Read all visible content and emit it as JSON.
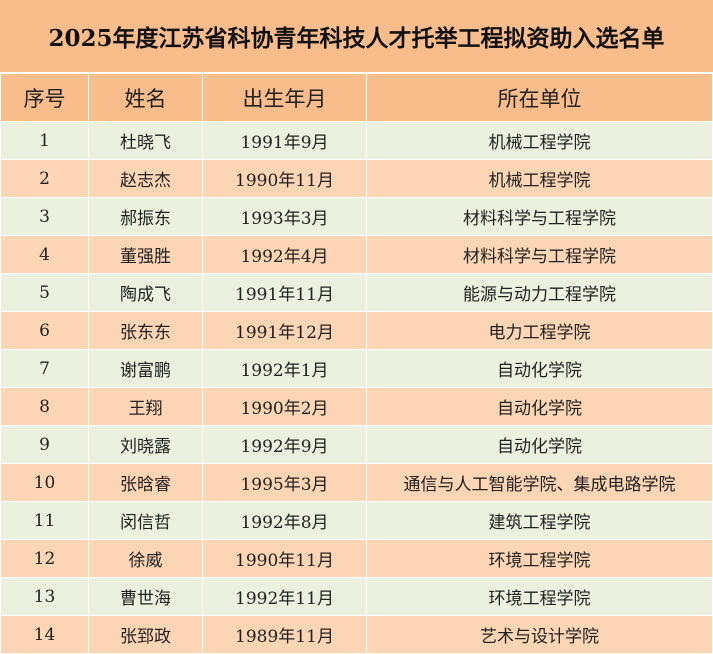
{
  "title": "2025年度江苏省科协青年科技人才托举工程拟资助入选名单",
  "colors": {
    "header": "#f9bd8c",
    "row_odd": "#ebf0df",
    "row_even": "#fcd5b4"
  },
  "columns": [
    "序号",
    "姓名",
    "出生年月",
    "所在单位"
  ],
  "rows": [
    [
      "1",
      "杜晓飞",
      "1991年9月",
      "机械工程学院"
    ],
    [
      "2",
      "赵志杰",
      "1990年11月",
      "机械工程学院"
    ],
    [
      "3",
      "郝振东",
      "1993年3月",
      "材料科学与工程学院"
    ],
    [
      "4",
      "董强胜",
      "1992年4月",
      "材料科学与工程学院"
    ],
    [
      "5",
      "陶成飞",
      "1991年11月",
      "能源与动力工程学院"
    ],
    [
      "6",
      "张东东",
      "1991年12月",
      "电力工程学院"
    ],
    [
      "7",
      "谢富鹏",
      "1992年1月",
      "自动化学院"
    ],
    [
      "8",
      "王翔",
      "1990年2月",
      "自动化学院"
    ],
    [
      "9",
      "刘晓露",
      "1992年9月",
      "自动化学院"
    ],
    [
      "10",
      "张晗睿",
      "1995年3月",
      "通信与人工智能学院、集成电路学院"
    ],
    [
      "11",
      "闵信哲",
      "1992年8月",
      "建筑工程学院"
    ],
    [
      "12",
      "徐威",
      "1990年11月",
      "环境工程学院"
    ],
    [
      "13",
      "曹世海",
      "1992年11月",
      "环境工程学院"
    ],
    [
      "14",
      "张郅政",
      "1989年11月",
      "艺术与设计学院"
    ]
  ]
}
